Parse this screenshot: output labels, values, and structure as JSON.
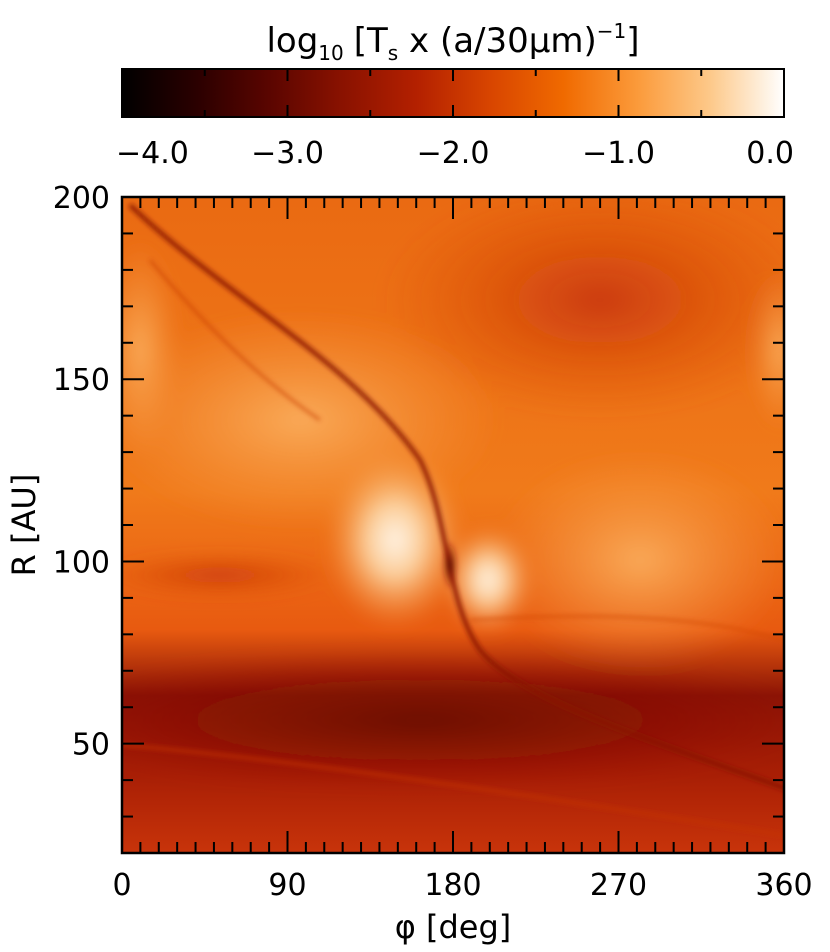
{
  "chart_data": {
    "type": "heatmap",
    "title": "",
    "colorbar": {
      "title_main": "log",
      "title_sub": "10",
      "title_rest": "[T",
      "title_sub2": "s",
      "title_end": " x (a/30μm)",
      "title_sup": "−1",
      "title_close": "]",
      "range": [
        -4.0,
        0.0
      ],
      "tick_labels": [
        "−4.0",
        "−3.0",
        "−2.0",
        "−1.0",
        "0.0"
      ],
      "tick_values": [
        -4.0,
        -3.0,
        -2.0,
        -1.0,
        0.0
      ],
      "colormap_stops": [
        "#000000",
        "#2a0000",
        "#5a0500",
        "#8a1200",
        "#b32000",
        "#d84500",
        "#f06a00",
        "#fb9a3a",
        "#fdc98a",
        "#ffffff"
      ]
    },
    "xlabel": "φ [deg]",
    "ylabel": "R [AU]",
    "xlim": [
      0,
      360
    ],
    "ylim": [
      20,
      200
    ],
    "x_tick_values": [
      0,
      90,
      180,
      270,
      360
    ],
    "x_tick_labels": [
      "0",
      "90",
      "180",
      "270",
      "360"
    ],
    "y_tick_values": [
      50,
      100,
      150,
      200
    ],
    "y_tick_labels": [
      "50",
      "100",
      "150",
      "200"
    ],
    "features": {
      "background_value": -1.5,
      "inner_dark_band_R": [
        40,
        70
      ],
      "inner_dark_band_value": -2.6,
      "bright_lobe_center": {
        "phi": 200,
        "R": 100,
        "value": -0.1
      },
      "dark_vortex_center": {
        "phi": 180,
        "R": 100,
        "value": -2.9
      },
      "outer_dark_region_center": {
        "phi": 270,
        "R": 170,
        "value": -1.9
      }
    }
  }
}
